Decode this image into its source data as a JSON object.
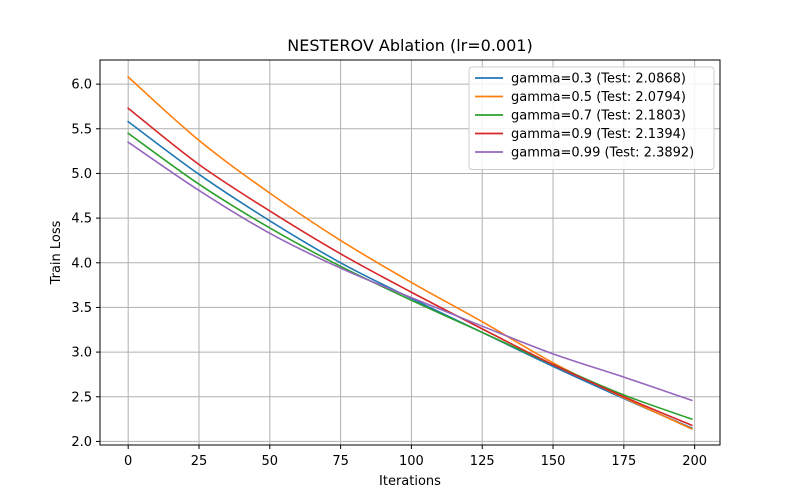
{
  "chart_data": {
    "type": "line",
    "title": "NESTEROV Ablation (lr=0.001)",
    "xlabel": "Iterations",
    "ylabel": "Train Loss",
    "xlim": [
      -9.95,
      208.95
    ],
    "ylim": [
      1.96,
      6.27
    ],
    "xticks": [
      0,
      25,
      50,
      75,
      100,
      125,
      150,
      175,
      200
    ],
    "xtick_labels": [
      "0",
      "25",
      "50",
      "75",
      "100",
      "125",
      "150",
      "175",
      "200"
    ],
    "yticks": [
      2.0,
      2.5,
      3.0,
      3.5,
      4.0,
      4.5,
      5.0,
      5.5,
      6.0
    ],
    "ytick_labels": [
      "2.0",
      "2.5",
      "3.0",
      "3.5",
      "4.0",
      "4.5",
      "5.0",
      "5.5",
      "6.0"
    ],
    "grid": true,
    "legend_position": "top-right",
    "x": [
      0,
      25,
      50,
      75,
      100,
      125,
      150,
      175,
      199
    ],
    "series": [
      {
        "name": "gamma=0.3 (Test: 2.0868)",
        "color": "#1f77b4",
        "values": [
          5.58,
          4.99,
          4.47,
          4.0,
          3.6,
          3.22,
          2.84,
          2.48,
          2.15
        ]
      },
      {
        "name": "gamma=0.5 (Test: 2.0794)",
        "color": "#ff7f0e",
        "values": [
          6.08,
          5.37,
          4.78,
          4.25,
          3.78,
          3.34,
          2.88,
          2.49,
          2.14
        ]
      },
      {
        "name": "gamma=0.7 (Test: 2.1803)",
        "color": "#2ca02c",
        "values": [
          5.45,
          4.88,
          4.39,
          3.96,
          3.58,
          3.22,
          2.86,
          2.52,
          2.25
        ]
      },
      {
        "name": "gamma=0.9 (Test: 2.1394)",
        "color": "#d62728",
        "values": [
          5.73,
          5.1,
          4.58,
          4.1,
          3.67,
          3.26,
          2.86,
          2.5,
          2.18
        ]
      },
      {
        "name": "gamma=0.99 (Test: 2.3892)",
        "color": "#9467bd",
        "values": [
          5.35,
          4.81,
          4.33,
          3.94,
          3.61,
          3.29,
          2.98,
          2.72,
          2.46
        ]
      }
    ]
  }
}
